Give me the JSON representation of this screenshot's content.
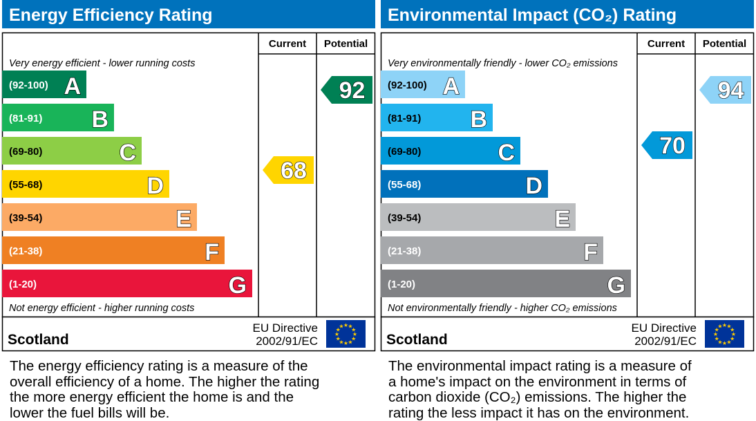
{
  "chart_data": [
    {
      "type": "bar",
      "title": "Energy Efficiency Rating",
      "columns": [
        "Current",
        "Potential"
      ],
      "top_note": "Very energy efficient - lower running costs",
      "bottom_note": "Not energy efficient - higher running costs",
      "bands": [
        {
          "range": "(92-100)",
          "letter": "A",
          "color": "#008054"
        },
        {
          "range": "(81-91)",
          "letter": "B",
          "color": "#19b459"
        },
        {
          "range": "(69-80)",
          "letter": "C",
          "color": "#8dce46"
        },
        {
          "range": "(55-68)",
          "letter": "D",
          "color": "#ffd500"
        },
        {
          "range": "(39-54)",
          "letter": "E",
          "color": "#fcaa65"
        },
        {
          "range": "(21-38)",
          "letter": "F",
          "color": "#ef8023"
        },
        {
          "range": "(1-20)",
          "letter": "G",
          "color": "#e9153b"
        }
      ],
      "current": {
        "value": 68,
        "label": "68",
        "color": "#ffd500"
      },
      "potential": {
        "value": 92,
        "label": "92",
        "color": "#008054"
      },
      "region": "Scotland",
      "directive_line1": "EU Directive",
      "directive_line2": "2002/91/EC",
      "description": [
        "The energy efficiency rating is a measure of the",
        "overall efficiency of a home. The higher the rating",
        "the more energy efficient the home is and the",
        "lower the fuel bills will be."
      ]
    },
    {
      "type": "bar",
      "title": "Environmental Impact (CO₂) Rating",
      "columns": [
        "Current",
        "Potential"
      ],
      "top_note": "Very environmentally friendly - lower CO₂ emissions",
      "bottom_note": "Not environmentally friendly - higher CO₂ emissions",
      "bands": [
        {
          "range": "(92-100)",
          "letter": "A",
          "color": "#8ed3f7"
        },
        {
          "range": "(81-91)",
          "letter": "B",
          "color": "#22b4ee"
        },
        {
          "range": "(69-80)",
          "letter": "C",
          "color": "#0299d9"
        },
        {
          "range": "(55-68)",
          "letter": "D",
          "color": "#0171bb"
        },
        {
          "range": "(39-54)",
          "letter": "E",
          "color": "#bbbdbf"
        },
        {
          "range": "(21-38)",
          "letter": "F",
          "color": "#a6a8ab"
        },
        {
          "range": "(1-20)",
          "letter": "G",
          "color": "#818285"
        }
      ],
      "current": {
        "value": 70,
        "label": "70",
        "color": "#0299d9"
      },
      "potential": {
        "value": 94,
        "label": "94",
        "color": "#8ed3f7"
      },
      "region": "Scotland",
      "directive_line1": "EU Directive",
      "directive_line2": "2002/91/EC",
      "description": [
        "The environmental impact rating is a measure of",
        "a home's impact on the environment in terms of",
        "carbon dioxide (CO₂) emissions. The higher the",
        "rating the less impact it has on the environment."
      ]
    }
  ],
  "colors": {
    "header": "#0072bc",
    "eu_flag": "#003399",
    "eu_stars": "#ffcc00"
  }
}
